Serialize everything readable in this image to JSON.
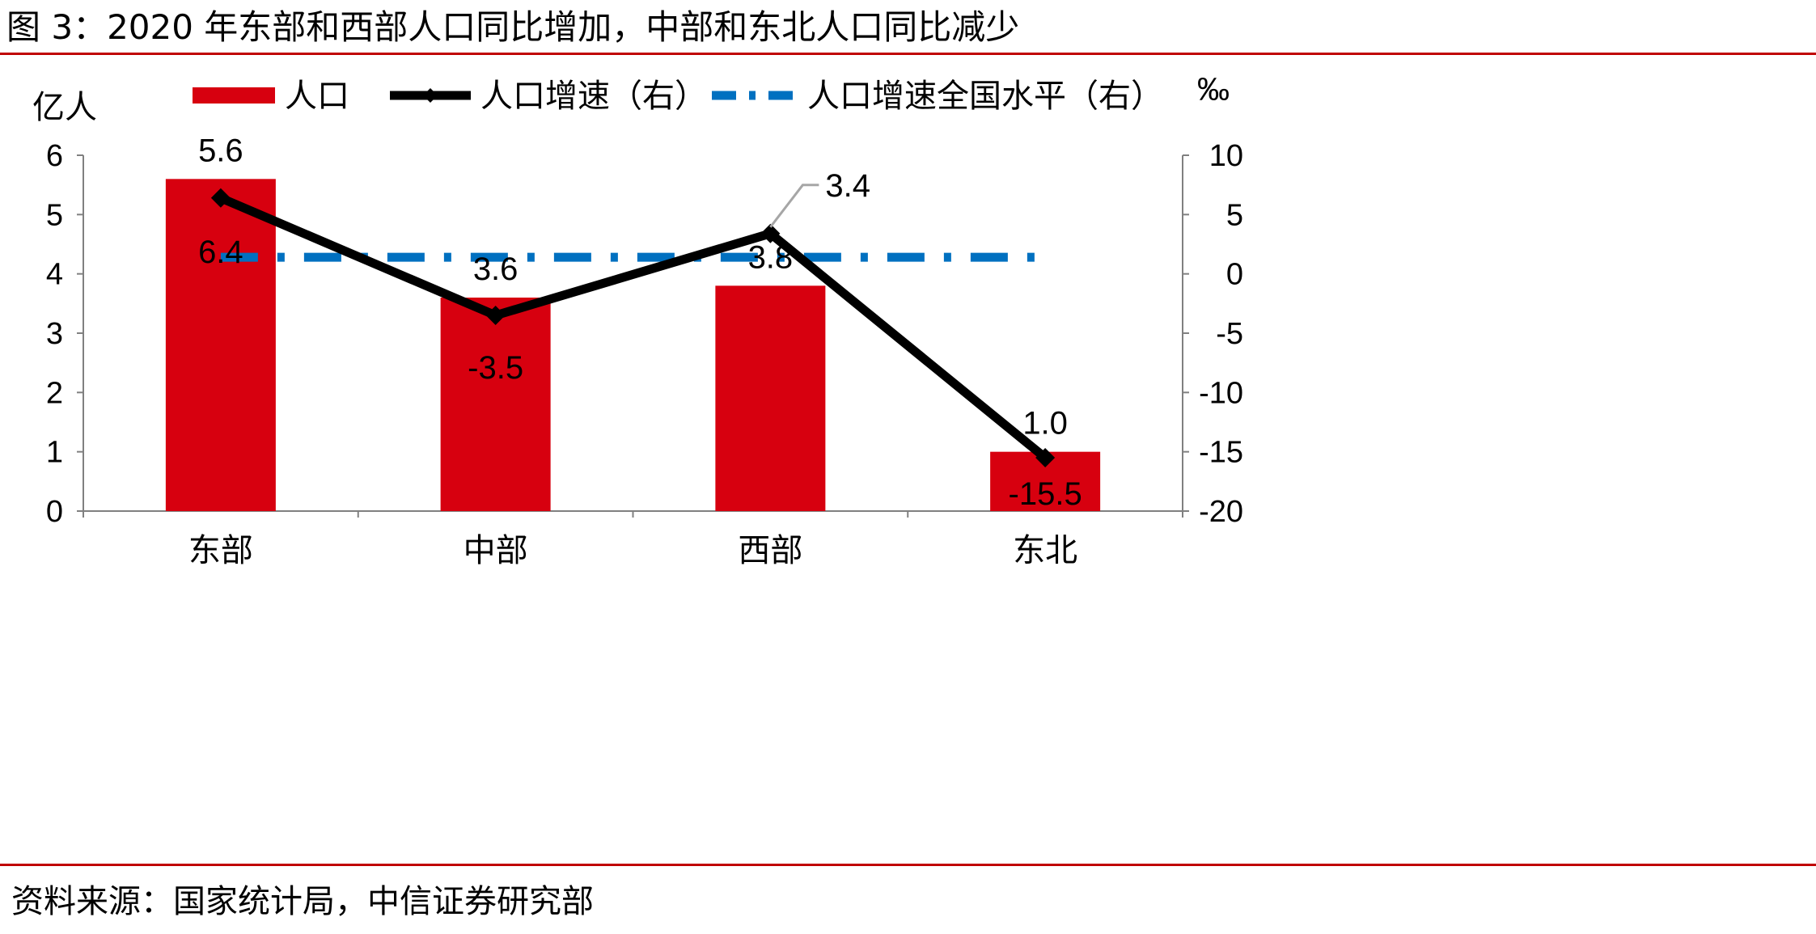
{
  "figure_title": "图 3：2020 年东部和西部人口同比增加，中部和东北人口同比减少",
  "source": "资料来源：国家统计局，中信证券研究部",
  "colors": {
    "bar": "#d7000f",
    "line": "#000000",
    "national": "#0070c0",
    "rule": "#c00000"
  },
  "chart_data": {
    "type": "bar",
    "categories": [
      "东部",
      "中部",
      "西部",
      "东北"
    ],
    "series": [
      {
        "name": "人口",
        "type": "bar",
        "axis": "left",
        "values": [
          5.6,
          3.6,
          3.8,
          1.0
        ]
      },
      {
        "name": "人口增速（右）",
        "type": "line",
        "axis": "right",
        "values": [
          6.4,
          -3.5,
          3.4,
          -15.5
        ]
      },
      {
        "name": "人口增速全国水平（右）",
        "type": "line",
        "style": "dash-dot",
        "axis": "right",
        "values": [
          1.4,
          1.4,
          1.4,
          1.4
        ]
      }
    ],
    "ylabel": "亿人",
    "y2label": "‰",
    "ylim": [
      0,
      6
    ],
    "y2lim": [
      -20,
      10
    ],
    "yticks": [
      "0",
      "1",
      "2",
      "3",
      "4",
      "5",
      "6"
    ],
    "y2ticks": [
      "-20",
      "-15",
      "-10",
      "-5",
      "0",
      "5",
      "10"
    ],
    "bar_labels": [
      "5.6",
      "3.6",
      "3.8",
      "1.0"
    ],
    "line_labels": [
      "6.4",
      "-3.5",
      "3.4",
      "-15.5"
    ],
    "legend_position": "top",
    "grid": false
  }
}
